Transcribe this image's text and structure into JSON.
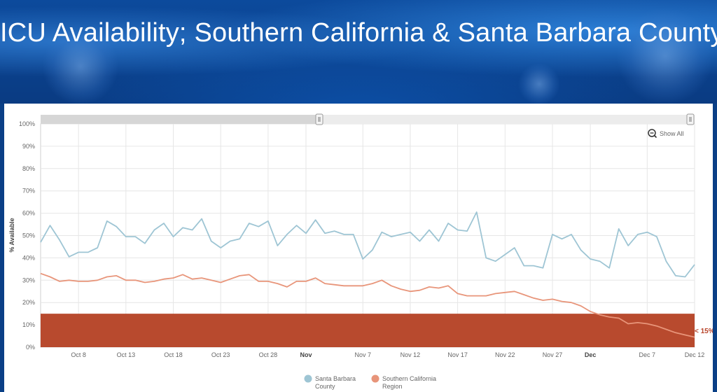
{
  "title": "ICU Availability; Southern California & Santa Barbara County",
  "controls": {
    "show_all_label": "Show All",
    "show_all_icon": "zoom-out-icon"
  },
  "threshold": {
    "label": "< 15%",
    "value": 15,
    "color": "#b84a2e"
  },
  "chart_data": {
    "type": "line",
    "ylabel": "% Available",
    "ylim": [
      0,
      100
    ],
    "y_ticks": [
      0,
      10,
      20,
      30,
      40,
      50,
      60,
      70,
      80,
      90,
      100
    ],
    "y_tick_labels": [
      "0%",
      "10%",
      "20%",
      "30%",
      "40%",
      "50%",
      "60%",
      "70%",
      "80%",
      "90%",
      "100%"
    ],
    "x_range_days": [
      0,
      69
    ],
    "x_ticks": [
      {
        "label": "Oct 8",
        "day": 4,
        "bold": false
      },
      {
        "label": "Oct 13",
        "day": 9,
        "bold": false
      },
      {
        "label": "Oct 18",
        "day": 14,
        "bold": false
      },
      {
        "label": "Oct 23",
        "day": 19,
        "bold": false
      },
      {
        "label": "Oct 28",
        "day": 24,
        "bold": false
      },
      {
        "label": "Nov",
        "day": 28,
        "bold": true
      },
      {
        "label": "Nov 7",
        "day": 34,
        "bold": false
      },
      {
        "label": "Nov 12",
        "day": 39,
        "bold": false
      },
      {
        "label": "Nov 17",
        "day": 44,
        "bold": false
      },
      {
        "label": "Nov 22",
        "day": 49,
        "bold": false
      },
      {
        "label": "Nov 27",
        "day": 54,
        "bold": false
      },
      {
        "label": "Dec",
        "day": 58,
        "bold": true
      },
      {
        "label": "Dec 7",
        "day": 64,
        "bold": false
      },
      {
        "label": "Dec 12",
        "day": 69,
        "bold": false
      }
    ],
    "grid": true,
    "legend_position": "bottom",
    "series": [
      {
        "name": "Santa Barbara County",
        "color": "#9ec5d4",
        "values": [
          47,
          54.5,
          48,
          40.5,
          42.5,
          42.5,
          44.5,
          56.5,
          54,
          49.5,
          49.5,
          46.5,
          52.5,
          55.5,
          49.5,
          53.5,
          52.5,
          57.5,
          47.5,
          44.5,
          47.5,
          48.5,
          55.5,
          54,
          56.5,
          45.5,
          50.5,
          54.5,
          51,
          57,
          51,
          52,
          50.5,
          50.5,
          39.5,
          43.5,
          51.5,
          49.5,
          50.5,
          51.5,
          47.5,
          52.5,
          47.5,
          55.5,
          52.5,
          52,
          60.5,
          40,
          38.5,
          41.5,
          44.5,
          36.5,
          36.5,
          35.5,
          50.5,
          48.5,
          50.5,
          43.5,
          39.5,
          38.5,
          35.5,
          53,
          45.5,
          50.5,
          51.5,
          49.5,
          38.5,
          32,
          31.5,
          37
        ]
      },
      {
        "name": "Southern California Region",
        "color": "#e8957a",
        "values": [
          33,
          31.5,
          29.5,
          30,
          29.5,
          29.5,
          30,
          31.5,
          32,
          30,
          30,
          29,
          29.5,
          30.5,
          31,
          32.5,
          30.5,
          31,
          30,
          29,
          30.5,
          32,
          32.5,
          29.5,
          29.5,
          28.5,
          27,
          29.5,
          29.5,
          31,
          28.5,
          28,
          27.5,
          27.5,
          27.5,
          28.5,
          30,
          27.5,
          26,
          25,
          25.5,
          27,
          26.5,
          27.5,
          24,
          23,
          23,
          23,
          24,
          24.5,
          25,
          23.5,
          22,
          21,
          21.5,
          20.5,
          20,
          18.5,
          16,
          14.5,
          13.5,
          13,
          10.5,
          11,
          10.5,
          9.5,
          8,
          6.5,
          5.5,
          4.5
        ]
      }
    ]
  }
}
